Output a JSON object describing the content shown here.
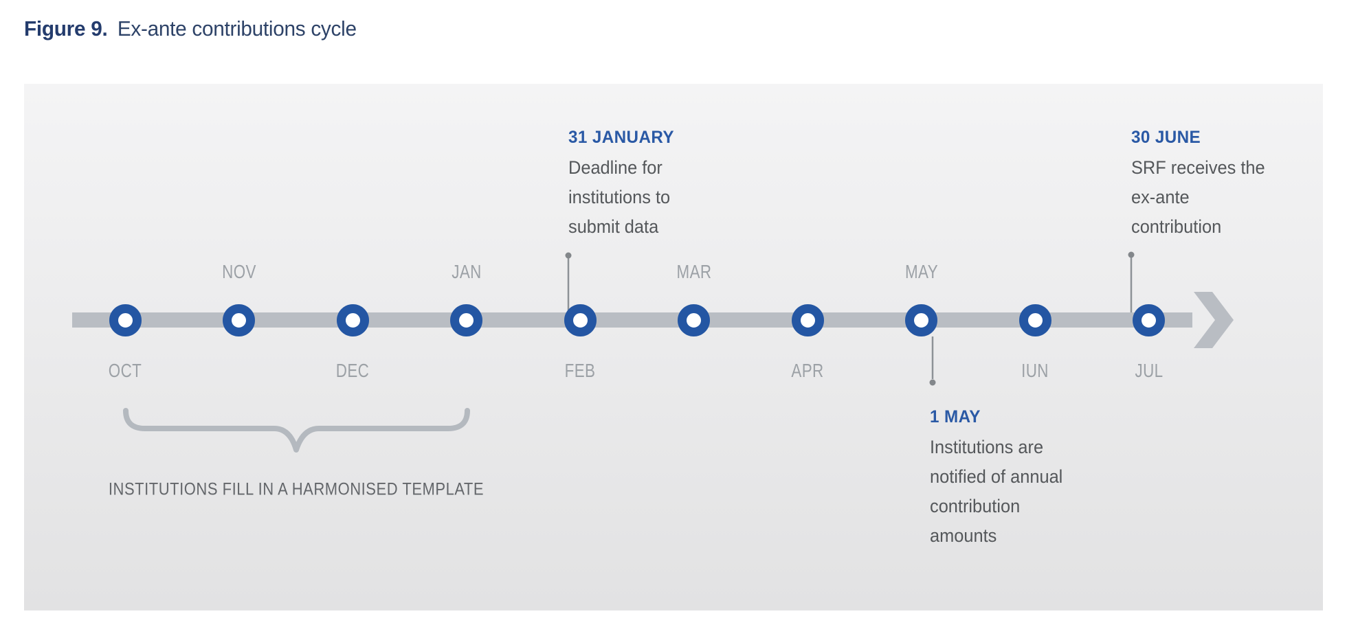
{
  "figure": {
    "label": "Figure 9.",
    "title": "Ex-ante contributions cycle"
  },
  "timeline": {
    "months": [
      {
        "label": "OCT",
        "side": "below"
      },
      {
        "label": "NOV",
        "side": "above"
      },
      {
        "label": "DEC",
        "side": "below"
      },
      {
        "label": "JAN",
        "side": "above"
      },
      {
        "label": "FEB",
        "side": "below"
      },
      {
        "label": "MAR",
        "side": "above"
      },
      {
        "label": "APR",
        "side": "below"
      },
      {
        "label": "MAY",
        "side": "above"
      },
      {
        "label": "IUN",
        "side": "below"
      },
      {
        "label": "JUL",
        "side": "below"
      }
    ]
  },
  "annotations": [
    {
      "date": "31 JANUARY",
      "lines": [
        "Deadline for",
        "institutions to",
        "submit data"
      ]
    },
    {
      "date": "1 MAY",
      "lines": [
        "Institutions are",
        "notified of annual",
        "contribution",
        "amounts"
      ]
    },
    {
      "date": "30 JUNE",
      "lines": [
        "SRF receives the",
        "ex-ante",
        "contribution"
      ]
    }
  ],
  "brace_label": "INSTITUTIONS FILL IN A HARMONISED TEMPLATE",
  "colors": {
    "navy": "#243C6D",
    "navy_soft": "#2E4368",
    "heading_blue": "#2A59A5",
    "node_blue": "#2456A3",
    "bar_gray": "#B9BDC3",
    "month_gray": "#9CA1A6",
    "body_gray": "#54575A",
    "brace_gray": "#B4B9BF",
    "brace_text": "#63666A",
    "connector_gray": "#8D9297",
    "dot_gray": "#83878B",
    "panel_top": "#F4F4F5",
    "panel_bottom": "#E2E2E3"
  }
}
